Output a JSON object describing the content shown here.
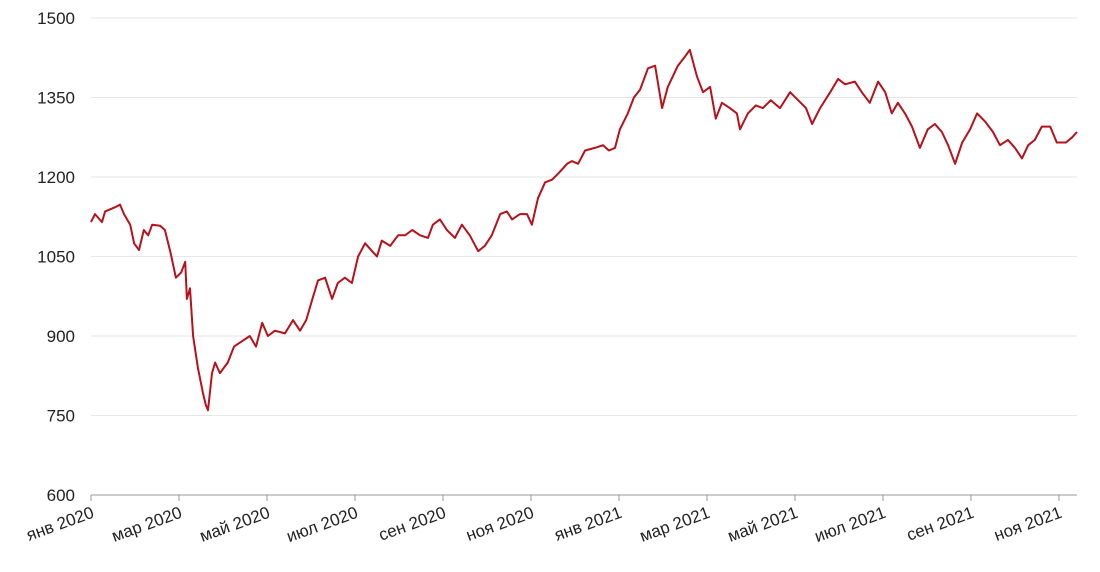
{
  "chart_data": {
    "type": "line",
    "color": "#b5121b",
    "grid": true,
    "x": [
      0,
      0.09,
      0.25,
      0.32,
      0.55,
      0.66,
      0.75,
      0.89,
      0.98,
      1.09,
      1.2,
      1.3,
      1.39,
      1.57,
      1.68,
      1.8,
      1.93,
      2.05,
      2.14,
      2.18,
      2.25,
      2.32,
      2.43,
      2.55,
      2.61,
      2.66,
      2.75,
      2.82,
      2.93,
      3.11,
      3.25,
      3.43,
      3.61,
      3.75,
      3.89,
      4.02,
      4.18,
      4.41,
      4.59,
      4.75,
      4.89,
      5.05,
      5.16,
      5.32,
      5.48,
      5.61,
      5.77,
      5.93,
      6.07,
      6.23,
      6.39,
      6.5,
      6.61,
      6.8,
      6.98,
      7.14,
      7.3,
      7.48,
      7.66,
      7.77,
      7.93,
      8.09,
      8.27,
      8.43,
      8.61,
      8.8,
      8.95,
      9.11,
      9.3,
      9.45,
      9.57,
      9.75,
      9.91,
      10.02,
      10.16,
      10.32,
      10.48,
      10.66,
      10.82,
      10.93,
      11.07,
      11.23,
      11.45,
      11.64,
      11.77,
      11.91,
      12.02,
      12.2,
      12.34,
      12.48,
      12.66,
      12.82,
      12.98,
      13.11,
      13.34,
      13.48,
      13.61,
      13.77,
      13.91,
      14.07,
      14.2,
      14.34,
      14.52,
      14.68,
      14.75,
      14.93,
      15.11,
      15.27,
      15.45,
      15.66,
      15.89,
      16.07,
      16.25,
      16.39,
      16.57,
      16.8,
      16.98,
      17.14,
      17.36,
      17.52,
      17.7,
      17.89,
      18.05,
      18.2,
      18.34,
      18.5,
      18.66,
      18.84,
      19.02,
      19.18,
      19.34,
      19.48,
      19.64,
      19.8,
      19.98,
      20.14,
      20.32,
      20.5,
      20.66,
      20.84,
      21,
      21.16,
      21.3,
      21.45,
      21.61,
      21.8,
      21.95,
      22.16,
      22.3,
      22.41
    ],
    "values": [
      1115,
      1130,
      1115,
      1135,
      1143,
      1148,
      1130,
      1110,
      1075,
      1062,
      1100,
      1090,
      1110,
      1108,
      1100,
      1060,
      1010,
      1020,
      1040,
      970,
      990,
      900,
      840,
      790,
      770,
      760,
      830,
      850,
      830,
      850,
      880,
      890,
      900,
      880,
      925,
      900,
      910,
      905,
      930,
      910,
      930,
      975,
      1005,
      1010,
      970,
      1000,
      1010,
      1000,
      1050,
      1075,
      1060,
      1050,
      1080,
      1070,
      1090,
      1090,
      1100,
      1090,
      1085,
      1110,
      1120,
      1100,
      1085,
      1110,
      1090,
      1060,
      1070,
      1090,
      1130,
      1135,
      1120,
      1130,
      1130,
      1110,
      1160,
      1190,
      1195,
      1210,
      1225,
      1230,
      1225,
      1250,
      1255,
      1260,
      1250,
      1255,
      1290,
      1320,
      1350,
      1365,
      1405,
      1410,
      1330,
      1370,
      1410,
      1425,
      1440,
      1390,
      1360,
      1370,
      1310,
      1340,
      1330,
      1320,
      1290,
      1320,
      1335,
      1330,
      1345,
      1330,
      1360,
      1345,
      1330,
      1300,
      1330,
      1360,
      1385,
      1375,
      1380,
      1360,
      1340,
      1380,
      1360,
      1320,
      1340,
      1320,
      1295,
      1255,
      1290,
      1300,
      1285,
      1260,
      1225,
      1265,
      1290,
      1320,
      1305,
      1285,
      1260,
      1270,
      1255,
      1235,
      1260,
      1270,
      1295,
      1295,
      1265,
      1265,
      1275,
      1285
    ],
    "xlim": [
      0,
      22.41
    ],
    "xticks": [
      {
        "value": 0,
        "label": "янв 2020"
      },
      {
        "value": 2,
        "label": "мар 2020"
      },
      {
        "value": 4,
        "label": "май 2020"
      },
      {
        "value": 6,
        "label": "июл 2020"
      },
      {
        "value": 8,
        "label": "сен 2020"
      },
      {
        "value": 10,
        "label": "ноя 2020"
      },
      {
        "value": 12,
        "label": "янв 2021"
      },
      {
        "value": 14,
        "label": "мар 2021"
      },
      {
        "value": 16,
        "label": "май 2021"
      },
      {
        "value": 18,
        "label": "июл 2021"
      },
      {
        "value": 20,
        "label": "сен 2021"
      },
      {
        "value": 22,
        "label": "ноя 2021"
      }
    ],
    "ylim": [
      600,
      1500
    ],
    "yticks": [
      600,
      750,
      900,
      1050,
      1200,
      1350,
      1500
    ]
  }
}
